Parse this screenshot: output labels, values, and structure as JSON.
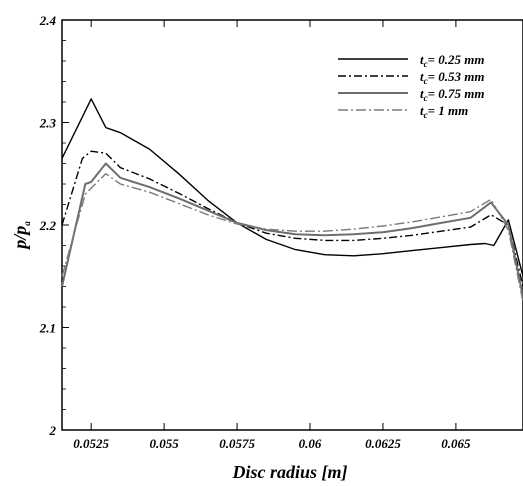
{
  "chart_data": {
    "type": "line",
    "title": "",
    "xlabel": "Disc radius [m]",
    "ylabel_main": "p/p",
    "ylabel_sub": "a",
    "xlim": [
      0.0515,
      0.0673
    ],
    "ylim": [
      2.0,
      2.4
    ],
    "x_ticks": [
      {
        "value": 0.0525,
        "label": "0.0525"
      },
      {
        "value": 0.055,
        "label": "0.055"
      },
      {
        "value": 0.0575,
        "label": "0.0575"
      },
      {
        "value": 0.06,
        "label": "0.06"
      },
      {
        "value": 0.0625,
        "label": "0.0625"
      },
      {
        "value": 0.065,
        "label": "0.065"
      }
    ],
    "y_ticks": [
      {
        "value": 2.0,
        "label": "2"
      },
      {
        "value": 2.1,
        "label": "2.1"
      },
      {
        "value": 2.2,
        "label": "2.2"
      },
      {
        "value": 2.3,
        "label": "2.3"
      },
      {
        "value": 2.4,
        "label": "2.4"
      }
    ],
    "grid": false,
    "legend_position": "top-right",
    "series": [
      {
        "name_main": "t",
        "name_sub": "c",
        "name_rest": "= 0.25 mm",
        "color": "#000000",
        "dash": "",
        "width": 1.4,
        "points": [
          [
            0.0515,
            2.265
          ],
          [
            0.0525,
            2.323
          ],
          [
            0.053,
            2.295
          ],
          [
            0.0535,
            2.29
          ],
          [
            0.0545,
            2.274
          ],
          [
            0.0555,
            2.25
          ],
          [
            0.0565,
            2.224
          ],
          [
            0.0575,
            2.202
          ],
          [
            0.0585,
            2.186
          ],
          [
            0.0595,
            2.176
          ],
          [
            0.0605,
            2.171
          ],
          [
            0.0615,
            2.17
          ],
          [
            0.0625,
            2.172
          ],
          [
            0.0635,
            2.175
          ],
          [
            0.0645,
            2.178
          ],
          [
            0.0655,
            2.181
          ],
          [
            0.066,
            2.182
          ],
          [
            0.0663,
            2.18
          ],
          [
            0.0668,
            2.205
          ],
          [
            0.0673,
            2.15
          ]
        ]
      },
      {
        "name_main": "t",
        "name_sub": "c",
        "name_rest": "= 0.53 mm",
        "color": "#000000",
        "dash": "8,3,2,3",
        "width": 1.4,
        "points": [
          [
            0.0515,
            2.2
          ],
          [
            0.0522,
            2.265
          ],
          [
            0.0525,
            2.272
          ],
          [
            0.053,
            2.27
          ],
          [
            0.0535,
            2.256
          ],
          [
            0.0545,
            2.245
          ],
          [
            0.0555,
            2.231
          ],
          [
            0.0565,
            2.216
          ],
          [
            0.0575,
            2.202
          ],
          [
            0.0585,
            2.192
          ],
          [
            0.0595,
            2.187
          ],
          [
            0.0605,
            2.185
          ],
          [
            0.0615,
            2.185
          ],
          [
            0.0625,
            2.187
          ],
          [
            0.0635,
            2.19
          ],
          [
            0.0645,
            2.194
          ],
          [
            0.0655,
            2.198
          ],
          [
            0.0662,
            2.21
          ],
          [
            0.0668,
            2.2
          ],
          [
            0.0673,
            2.14
          ]
        ]
      },
      {
        "name_main": "t",
        "name_sub": "c",
        "name_rest": "= 0.75 mm",
        "color": "#6e6e6e",
        "dash": "",
        "width": 2.0,
        "points": [
          [
            0.0515,
            2.14
          ],
          [
            0.0523,
            2.24
          ],
          [
            0.0525,
            2.242
          ],
          [
            0.053,
            2.26
          ],
          [
            0.0535,
            2.246
          ],
          [
            0.0545,
            2.237
          ],
          [
            0.0555,
            2.226
          ],
          [
            0.0565,
            2.214
          ],
          [
            0.0575,
            2.202
          ],
          [
            0.0585,
            2.195
          ],
          [
            0.0595,
            2.191
          ],
          [
            0.0605,
            2.19
          ],
          [
            0.0615,
            2.191
          ],
          [
            0.0625,
            2.193
          ],
          [
            0.0635,
            2.197
          ],
          [
            0.0645,
            2.202
          ],
          [
            0.0655,
            2.207
          ],
          [
            0.0662,
            2.222
          ],
          [
            0.0668,
            2.2
          ],
          [
            0.0673,
            2.13
          ]
        ]
      },
      {
        "name_main": "t",
        "name_sub": "c",
        "name_rest": "= 1 mm",
        "color": "#7a7a7a",
        "dash": "10,3,2,3",
        "width": 1.4,
        "points": [
          [
            0.0515,
            2.15
          ],
          [
            0.0523,
            2.23
          ],
          [
            0.0525,
            2.236
          ],
          [
            0.053,
            2.25
          ],
          [
            0.0535,
            2.24
          ],
          [
            0.0545,
            2.232
          ],
          [
            0.0555,
            2.221
          ],
          [
            0.0565,
            2.21
          ],
          [
            0.0575,
            2.201
          ],
          [
            0.0585,
            2.196
          ],
          [
            0.0595,
            2.194
          ],
          [
            0.0605,
            2.194
          ],
          [
            0.0615,
            2.196
          ],
          [
            0.0625,
            2.199
          ],
          [
            0.0635,
            2.203
          ],
          [
            0.0645,
            2.208
          ],
          [
            0.0655,
            2.213
          ],
          [
            0.0662,
            2.225
          ],
          [
            0.0668,
            2.195
          ],
          [
            0.0673,
            2.125
          ]
        ]
      }
    ]
  }
}
